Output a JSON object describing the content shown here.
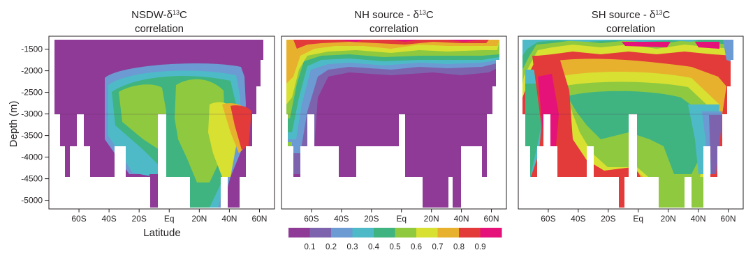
{
  "chart_data": {
    "type": "heatmap",
    "figure": {
      "ylabel": "Depth (m)",
      "xlabel": "Latitude",
      "y_ticks": [
        "-1500",
        "-2000",
        "-2500",
        "-3000",
        "-3500",
        "-4000",
        "-4500",
        "-5000"
      ],
      "y_tick_values": [
        -1500,
        -2000,
        -2500,
        -3000,
        -3500,
        -4000,
        -4500,
        -5000
      ],
      "ylim": [
        -5200,
        -1200
      ],
      "x_ticks": [
        "60S",
        "40S",
        "20S",
        "Eq",
        "20N",
        "40N",
        "60N"
      ],
      "x_tick_values": [
        -60,
        -40,
        -20,
        0,
        20,
        40,
        60
      ],
      "xlim": [
        -80,
        70
      ]
    },
    "colorbar": {
      "labels": [
        "0.1",
        "0.2",
        "0.3",
        "0.4",
        "0.5",
        "0.6",
        "0.7",
        "0.8",
        "0.9"
      ],
      "values": [
        0.1,
        0.2,
        0.3,
        0.4,
        0.5,
        0.6,
        0.7,
        0.8,
        0.9
      ],
      "colors": [
        "#8e3a96",
        "#7d63ad",
        "#6c9ad2",
        "#4ebac8",
        "#3fb481",
        "#8fc93f",
        "#d8e032",
        "#e7b12e",
        "#e33a3a",
        "#e5127a"
      ]
    },
    "panels": [
      {
        "title_prefix": "NSDW-δ",
        "title_sup": "13",
        "title_suffix": "C",
        "title_line2": "correlation",
        "summary": [
          {
            "region": "upper basin (-1500 to -3000 m)",
            "typical_level": 0.1
          },
          {
            "region": "core 20S–20N at -3000 m",
            "typical_level": 0.5
          },
          {
            "region": "deep water near 40N",
            "typical_level": 0.8
          }
        ]
      },
      {
        "title_prefix": "NH source - δ",
        "title_sup": "13",
        "title_suffix": "C",
        "title_line2": "correlation",
        "summary": [
          {
            "region": "surface layer near -1500 m",
            "typical_level": 0.7
          },
          {
            "region": "interior basin",
            "typical_level": 0.1
          }
        ]
      },
      {
        "title_prefix": "SH source - δ",
        "title_sup": "13",
        "title_suffix": "C",
        "title_line2": "correlation",
        "summary": [
          {
            "region": "upper ocean 60S–60N",
            "typical_level": 0.8
          },
          {
            "region": "south deep (40S–20S)",
            "typical_level": 0.8
          },
          {
            "region": "equatorial deep",
            "typical_level": 0.5
          }
        ]
      }
    ]
  }
}
